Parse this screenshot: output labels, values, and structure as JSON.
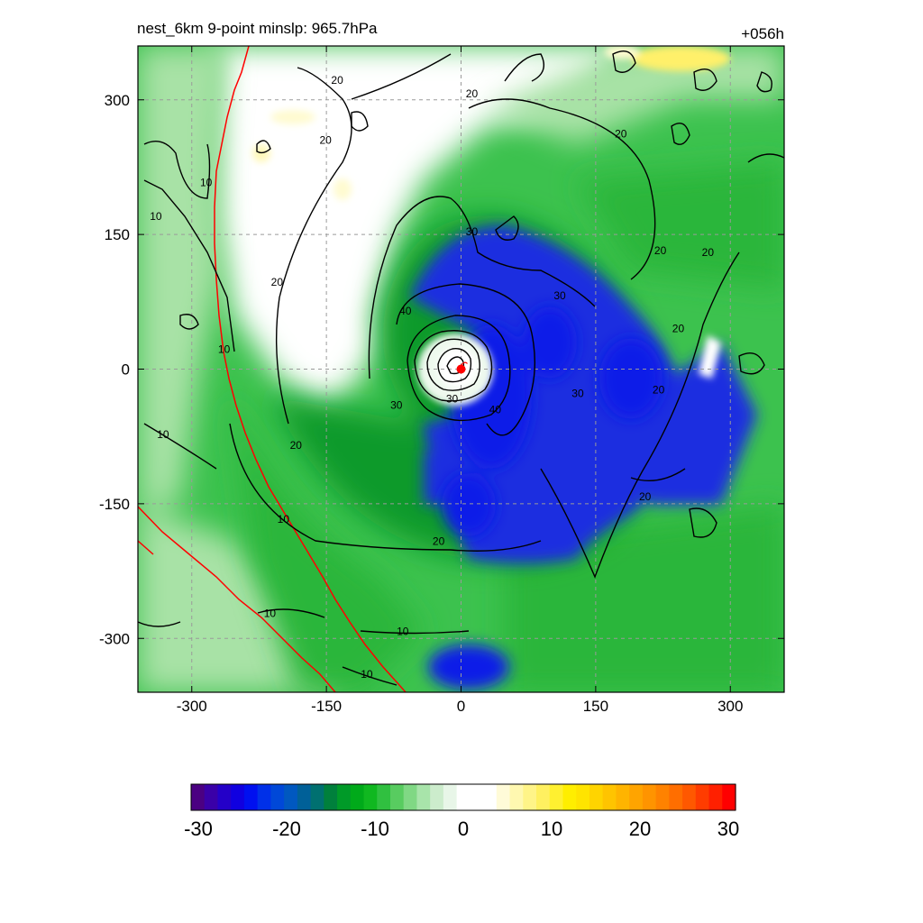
{
  "header": {
    "left_title": "nest_6km  9-point minslp: 965.7hPa",
    "right_title": "+056h"
  },
  "chart_data": {
    "type": "heatmap",
    "title": "nest_6km  9-point minslp: 965.7hPa",
    "forecast_hour": "+056h",
    "x_ticks": [
      -300,
      -150,
      0,
      150,
      300
    ],
    "y_ticks": [
      300,
      150,
      0,
      -150,
      -300
    ],
    "xlim": [
      -360,
      360
    ],
    "ylim": [
      -360,
      360
    ],
    "grid": true,
    "storm_center": [
      0,
      0
    ],
    "contour_labels": [
      {
        "value": "20",
        "x": -138,
        "y": 322
      },
      {
        "value": "20",
        "x": 12,
        "y": 307
      },
      {
        "value": "20",
        "x": -151,
        "y": 255
      },
      {
        "value": "20",
        "x": 178,
        "y": 262
      },
      {
        "value": "10",
        "x": -284,
        "y": 208
      },
      {
        "value": "10",
        "x": -340,
        "y": 170
      },
      {
        "value": "30",
        "x": 12,
        "y": 153
      },
      {
        "value": "20",
        "x": 222,
        "y": 132
      },
      {
        "value": "20",
        "x": 275,
        "y": 130
      },
      {
        "value": "20",
        "x": -205,
        "y": 97
      },
      {
        "value": "30",
        "x": 110,
        "y": 82
      },
      {
        "value": "40",
        "x": -62,
        "y": 65
      },
      {
        "value": "20",
        "x": 242,
        "y": 45
      },
      {
        "value": "10",
        "x": -264,
        "y": 22
      },
      {
        "value": "30",
        "x": 130,
        "y": -27
      },
      {
        "value": "20",
        "x": 220,
        "y": -23
      },
      {
        "value": "30",
        "x": -10,
        "y": -33
      },
      {
        "value": "30",
        "x": -72,
        "y": -40
      },
      {
        "value": "40",
        "x": 38,
        "y": -45
      },
      {
        "value": "10",
        "x": -332,
        "y": -73
      },
      {
        "value": "20",
        "x": -184,
        "y": -85
      },
      {
        "value": "20",
        "x": 205,
        "y": -142
      },
      {
        "value": "10",
        "x": -198,
        "y": -167
      },
      {
        "value": "20",
        "x": -25,
        "y": -192
      },
      {
        "value": "10",
        "x": -213,
        "y": -272
      },
      {
        "value": "10",
        "x": -65,
        "y": -292
      },
      {
        "value": "10",
        "x": -105,
        "y": -340
      }
    ],
    "colorbar": {
      "min": -30,
      "max": 30,
      "tick_labels": [
        "-30",
        "-20",
        "-10",
        "0",
        "10",
        "20",
        "30"
      ],
      "colors": [
        "#4b0082",
        "#3a00a8",
        "#2400c8",
        "#1000e0",
        "#0010f0",
        "#0030e8",
        "#0048d8",
        "#0058c0",
        "#006098",
        "#007070",
        "#00803c",
        "#009a28",
        "#00aa1a",
        "#10b820",
        "#30c040",
        "#58cc60",
        "#80d884",
        "#a8e4aa",
        "#cceccc",
        "#e8f6e8",
        "#ffffff",
        "#ffffff",
        "#ffffff",
        "#fffbd8",
        "#fff8b0",
        "#fff488",
        "#fff060",
        "#fff030",
        "#ffee00",
        "#ffe400",
        "#ffd400",
        "#ffc400",
        "#ffb400",
        "#ffa400",
        "#ff9400",
        "#ff8200",
        "#ff6e00",
        "#ff5800",
        "#ff3c00",
        "#ff2000",
        "#ff0000"
      ]
    }
  }
}
